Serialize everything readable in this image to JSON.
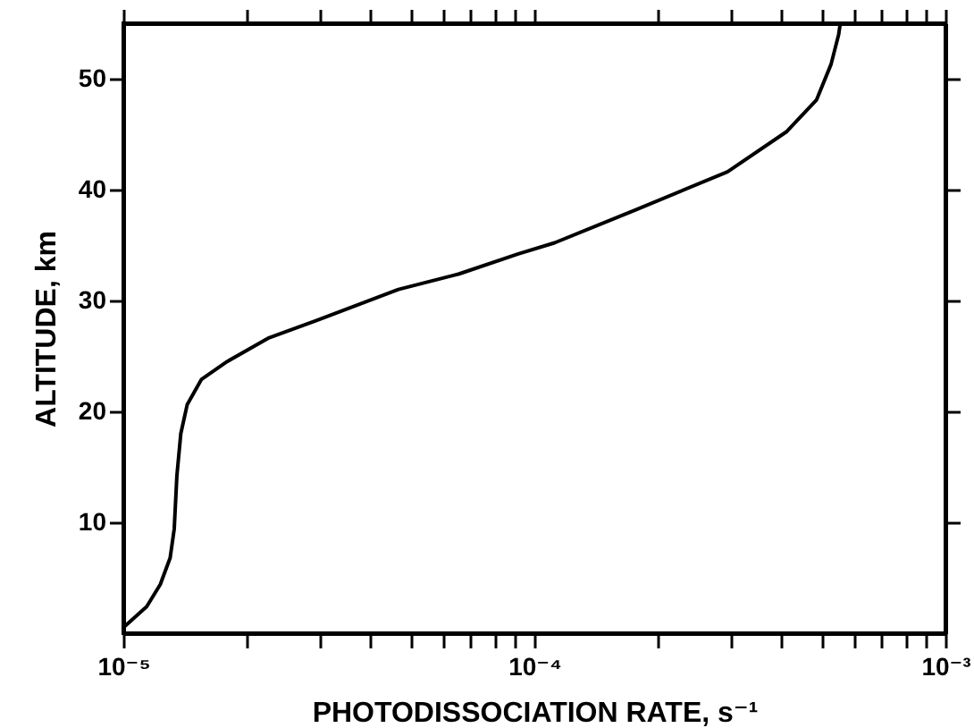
{
  "chart_data": {
    "type": "line",
    "xlabel": "PHOTODISSOCIATION RATE, s⁻¹",
    "ylabel": "ALTITUDE, km",
    "log": "x",
    "grid": false,
    "marker": "none",
    "line_style": "solid",
    "xlim": [
      1e-05,
      0.001
    ],
    "ylim": [
      0,
      55
    ],
    "xticks": [
      {
        "value": 1e-05,
        "label": "10⁻⁵"
      },
      {
        "value": 2e-05,
        "label": null
      },
      {
        "value": 3e-05,
        "label": null
      },
      {
        "value": 4e-05,
        "label": null
      },
      {
        "value": 5e-05,
        "label": null
      },
      {
        "value": 6e-05,
        "label": null
      },
      {
        "value": 7e-05,
        "label": null
      },
      {
        "value": 8e-05,
        "label": null
      },
      {
        "value": 9e-05,
        "label": null
      },
      {
        "value": 0.0001,
        "label": "10⁻⁴"
      },
      {
        "value": 0.0002,
        "label": null
      },
      {
        "value": 0.0003,
        "label": null
      },
      {
        "value": 0.0004,
        "label": null
      },
      {
        "value": 0.0005,
        "label": null
      },
      {
        "value": 0.0006,
        "label": null
      },
      {
        "value": 0.0007,
        "label": null
      },
      {
        "value": 0.0008,
        "label": null
      },
      {
        "value": 0.0009,
        "label": null
      },
      {
        "value": 0.001,
        "label": "10⁻³"
      }
    ],
    "yticks": [
      10,
      20,
      30,
      40,
      50
    ],
    "x": [
      1e-05,
      1.14e-05,
      1.23e-05,
      1.3e-05,
      1.33e-05,
      1.35e-05,
      1.38e-05,
      1.43e-05,
      1.55e-05,
      1.79e-05,
      2.25e-05,
      2.95e-05,
      4.67e-05,
      6.56e-05,
      9.14e-05,
      0.000112,
      0.000177,
      0.000295,
      0.00041,
      0.000486,
      0.000527,
      0.00055,
      0.000555
    ],
    "series": [
      {
        "color": "#000000",
        "values": [
          0.5,
          2.4,
          4.4,
          6.8,
          9.4,
          14.2,
          18,
          20.6,
          22.9,
          24.5,
          26.6,
          28.2,
          31,
          32.4,
          34.2,
          35.2,
          38.2,
          41.6,
          45.2,
          48.1,
          51.3,
          54,
          55
        ]
      }
    ]
  }
}
